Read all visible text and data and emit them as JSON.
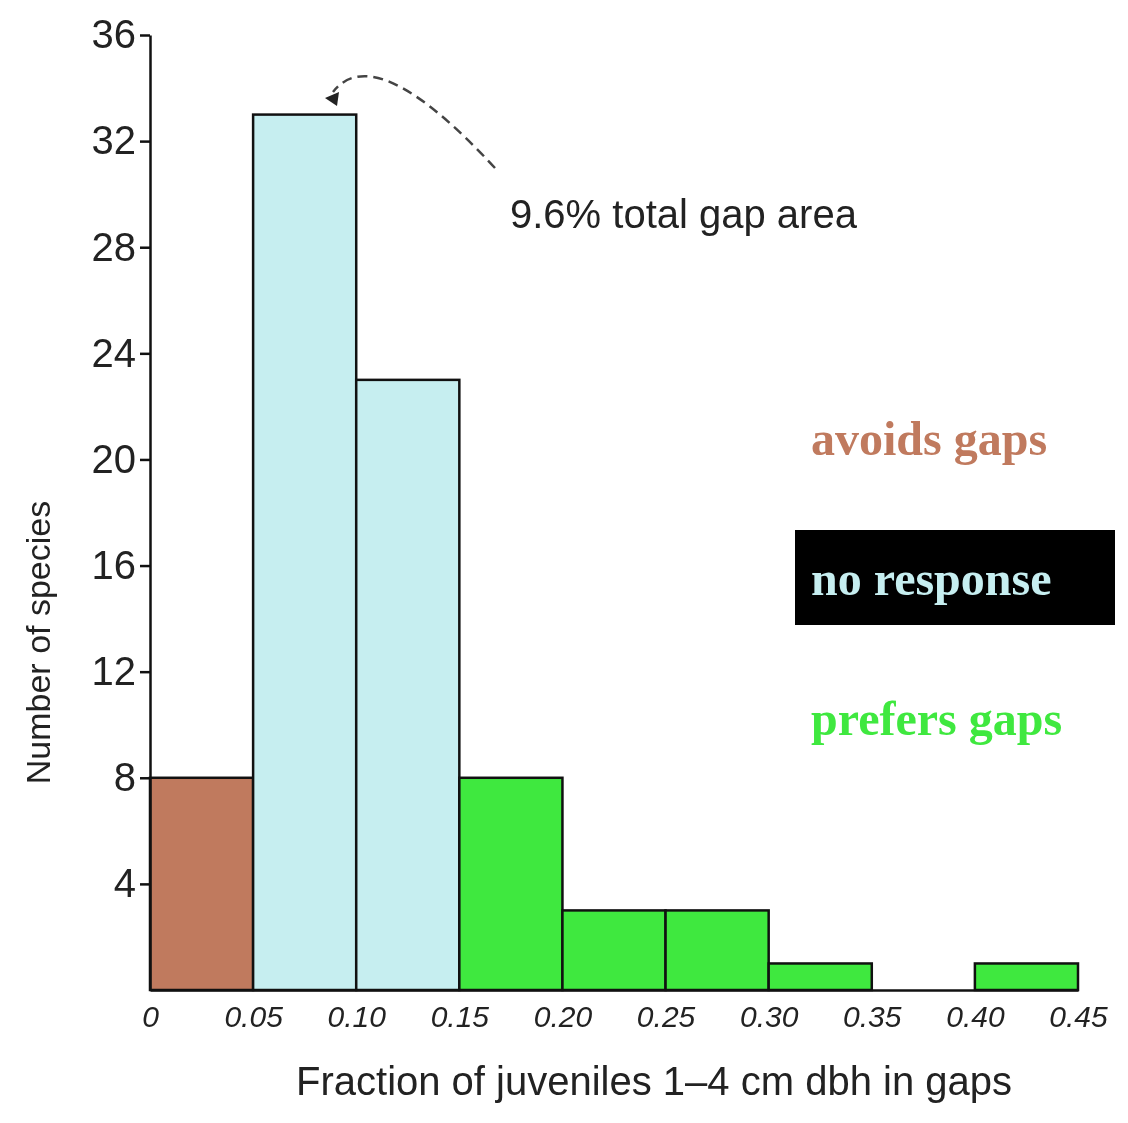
{
  "chart_data": {
    "type": "histogram",
    "xlabel": "Fraction of juveniles 1–4 cm dbh in gaps",
    "ylabel": "Number of species",
    "bins": [
      0,
      0.05,
      0.1,
      0.15,
      0.2,
      0.25,
      0.3,
      0.35,
      0.4,
      0.45
    ],
    "series": [
      {
        "name": "avoids gaps",
        "color": "#c07a5e",
        "values": [
          8,
          null,
          null,
          null,
          null,
          null,
          null,
          null,
          null
        ]
      },
      {
        "name": "no response",
        "color": "#c6eef0",
        "values": [
          null,
          33,
          23,
          null,
          null,
          null,
          null,
          null,
          null
        ]
      },
      {
        "name": "prefers gaps",
        "color": "#3fe83f",
        "values": [
          null,
          null,
          null,
          8,
          3,
          3,
          1,
          0,
          1
        ]
      }
    ],
    "xlim": [
      0,
      0.45
    ],
    "ylim": [
      0,
      36
    ],
    "xticks": [
      0,
      {
        "value": 0.05,
        "label": "0.05"
      },
      {
        "value": 0.1,
        "label": "0.10"
      },
      {
        "value": 0.15,
        "label": "0.15"
      },
      {
        "value": 0.2,
        "label": "0.20"
      },
      {
        "value": 0.25,
        "label": "0.25"
      },
      {
        "value": 0.3,
        "label": "0.30"
      },
      {
        "value": 0.35,
        "label": "0.35"
      },
      {
        "value": 0.4,
        "label": "0.40"
      },
      {
        "value": 0.45,
        "label": "0.45"
      }
    ],
    "yticks": [
      4,
      8,
      12,
      16,
      20,
      24,
      28,
      32,
      36
    ],
    "annotations": [
      "9.6% total gap area"
    ],
    "legend": "right",
    "grid": false
  }
}
